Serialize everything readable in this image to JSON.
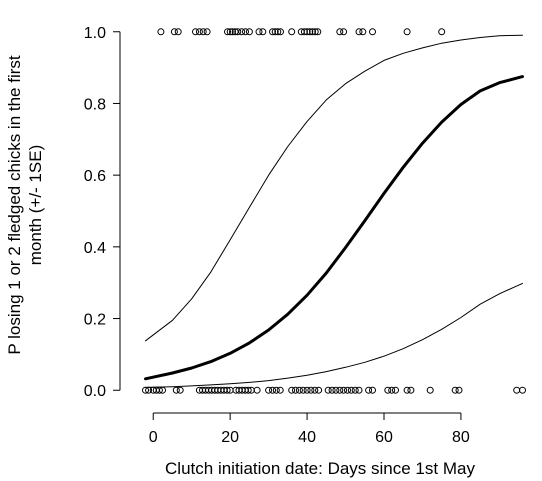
{
  "chart_data": {
    "type": "line",
    "title": "",
    "xlabel": "Clutch initiation date: Days since 1st May",
    "ylabel_line1": "P losing 1 or 2 fledged chicks in the first",
    "ylabel_line2": "month (+/- 1SE)",
    "xlim": [
      -5,
      99
    ],
    "ylim": [
      -0.03,
      1.03
    ],
    "xticks": [
      0,
      20,
      40,
      60,
      80
    ],
    "yticks": [
      0.0,
      0.2,
      0.4,
      0.6,
      0.8,
      1.0
    ],
    "ytick_labels": [
      "0.0",
      "0.2",
      "0.4",
      "0.6",
      "0.8",
      "1.0"
    ],
    "grid": false,
    "series": [
      {
        "role": "fit",
        "x": [
          -2,
          5,
          10,
          15,
          20,
          25,
          30,
          35,
          40,
          45,
          50,
          55,
          60,
          65,
          70,
          75,
          80,
          85,
          90,
          96
        ],
        "values": [
          0.032,
          0.048,
          0.062,
          0.08,
          0.103,
          0.132,
          0.168,
          0.212,
          0.265,
          0.327,
          0.398,
          0.473,
          0.549,
          0.622,
          0.689,
          0.748,
          0.797,
          0.835,
          0.858,
          0.875
        ]
      },
      {
        "role": "upper_se",
        "x": [
          -2,
          5,
          10,
          15,
          20,
          25,
          30,
          35,
          40,
          45,
          50,
          55,
          60,
          65,
          70,
          75,
          80,
          85,
          90,
          96
        ],
        "values": [
          0.138,
          0.195,
          0.255,
          0.33,
          0.42,
          0.51,
          0.6,
          0.68,
          0.75,
          0.81,
          0.855,
          0.89,
          0.92,
          0.94,
          0.955,
          0.968,
          0.977,
          0.984,
          0.989,
          0.99
        ]
      },
      {
        "role": "lower_se",
        "x": [
          -2,
          5,
          10,
          15,
          20,
          25,
          30,
          35,
          40,
          45,
          50,
          55,
          60,
          65,
          70,
          75,
          80,
          85,
          90,
          96
        ],
        "values": [
          0.008,
          0.01,
          0.012,
          0.015,
          0.018,
          0.022,
          0.027,
          0.034,
          0.042,
          0.052,
          0.064,
          0.078,
          0.095,
          0.116,
          0.141,
          0.17,
          0.203,
          0.24,
          0.269,
          0.298
        ]
      }
    ],
    "points": [
      {
        "x": 2,
        "y": 1
      },
      {
        "x": 5.5,
        "y": 1
      },
      {
        "x": 6.5,
        "y": 1
      },
      {
        "x": 11,
        "y": 1
      },
      {
        "x": 12,
        "y": 1
      },
      {
        "x": 13,
        "y": 1
      },
      {
        "x": 14,
        "y": 1
      },
      {
        "x": 19.3,
        "y": 1
      },
      {
        "x": 20,
        "y": 1
      },
      {
        "x": 20.6,
        "y": 1
      },
      {
        "x": 21.3,
        "y": 1
      },
      {
        "x": 22,
        "y": 1
      },
      {
        "x": 23,
        "y": 1
      },
      {
        "x": 24,
        "y": 1
      },
      {
        "x": 25,
        "y": 1
      },
      {
        "x": 27.5,
        "y": 1
      },
      {
        "x": 28.5,
        "y": 1
      },
      {
        "x": 31,
        "y": 1
      },
      {
        "x": 31.7,
        "y": 1
      },
      {
        "x": 32.4,
        "y": 1
      },
      {
        "x": 33.1,
        "y": 1
      },
      {
        "x": 36,
        "y": 1
      },
      {
        "x": 38.5,
        "y": 1
      },
      {
        "x": 39.3,
        "y": 1
      },
      {
        "x": 40,
        "y": 1
      },
      {
        "x": 40.7,
        "y": 1
      },
      {
        "x": 41.4,
        "y": 1
      },
      {
        "x": 42.1,
        "y": 1
      },
      {
        "x": 42.8,
        "y": 1
      },
      {
        "x": 48.5,
        "y": 1
      },
      {
        "x": 49.5,
        "y": 1
      },
      {
        "x": 53.5,
        "y": 1
      },
      {
        "x": 54.5,
        "y": 1
      },
      {
        "x": 57,
        "y": 1
      },
      {
        "x": 66,
        "y": 1
      },
      {
        "x": 75,
        "y": 1
      },
      {
        "x": -2,
        "y": 0
      },
      {
        "x": -1.2,
        "y": 0
      },
      {
        "x": 0,
        "y": 0
      },
      {
        "x": 0.8,
        "y": 0
      },
      {
        "x": 1.6,
        "y": 0
      },
      {
        "x": 2.4,
        "y": 0
      },
      {
        "x": 6,
        "y": 0
      },
      {
        "x": 7,
        "y": 0
      },
      {
        "x": 12,
        "y": 0
      },
      {
        "x": 12.8,
        "y": 0
      },
      {
        "x": 13.6,
        "y": 0
      },
      {
        "x": 14.4,
        "y": 0
      },
      {
        "x": 15.2,
        "y": 0
      },
      {
        "x": 16,
        "y": 0
      },
      {
        "x": 16.8,
        "y": 0
      },
      {
        "x": 17.6,
        "y": 0
      },
      {
        "x": 18.4,
        "y": 0
      },
      {
        "x": 19.2,
        "y": 0
      },
      {
        "x": 20,
        "y": 0
      },
      {
        "x": 21.5,
        "y": 0
      },
      {
        "x": 22.3,
        "y": 0
      },
      {
        "x": 23.1,
        "y": 0
      },
      {
        "x": 23.9,
        "y": 0
      },
      {
        "x": 24.7,
        "y": 0
      },
      {
        "x": 25.5,
        "y": 0
      },
      {
        "x": 27,
        "y": 0
      },
      {
        "x": 30,
        "y": 0
      },
      {
        "x": 31,
        "y": 0
      },
      {
        "x": 32,
        "y": 0
      },
      {
        "x": 33,
        "y": 0
      },
      {
        "x": 36,
        "y": 0
      },
      {
        "x": 37,
        "y": 0
      },
      {
        "x": 38,
        "y": 0
      },
      {
        "x": 39,
        "y": 0
      },
      {
        "x": 40,
        "y": 0
      },
      {
        "x": 41,
        "y": 0
      },
      {
        "x": 42,
        "y": 0
      },
      {
        "x": 43,
        "y": 0
      },
      {
        "x": 45.5,
        "y": 0
      },
      {
        "x": 46.5,
        "y": 0
      },
      {
        "x": 47.5,
        "y": 0
      },
      {
        "x": 48.5,
        "y": 0
      },
      {
        "x": 49.5,
        "y": 0
      },
      {
        "x": 50.5,
        "y": 0
      },
      {
        "x": 51.5,
        "y": 0
      },
      {
        "x": 52.5,
        "y": 0
      },
      {
        "x": 53.5,
        "y": 0
      },
      {
        "x": 56,
        "y": 0
      },
      {
        "x": 57,
        "y": 0
      },
      {
        "x": 61,
        "y": 0
      },
      {
        "x": 62,
        "y": 0
      },
      {
        "x": 63,
        "y": 0
      },
      {
        "x": 66,
        "y": 0
      },
      {
        "x": 67,
        "y": 0
      },
      {
        "x": 72,
        "y": 0
      },
      {
        "x": 78.5,
        "y": 0
      },
      {
        "x": 79.5,
        "y": 0
      },
      {
        "x": 94.5,
        "y": 0
      },
      {
        "x": 96,
        "y": 0
      }
    ]
  }
}
